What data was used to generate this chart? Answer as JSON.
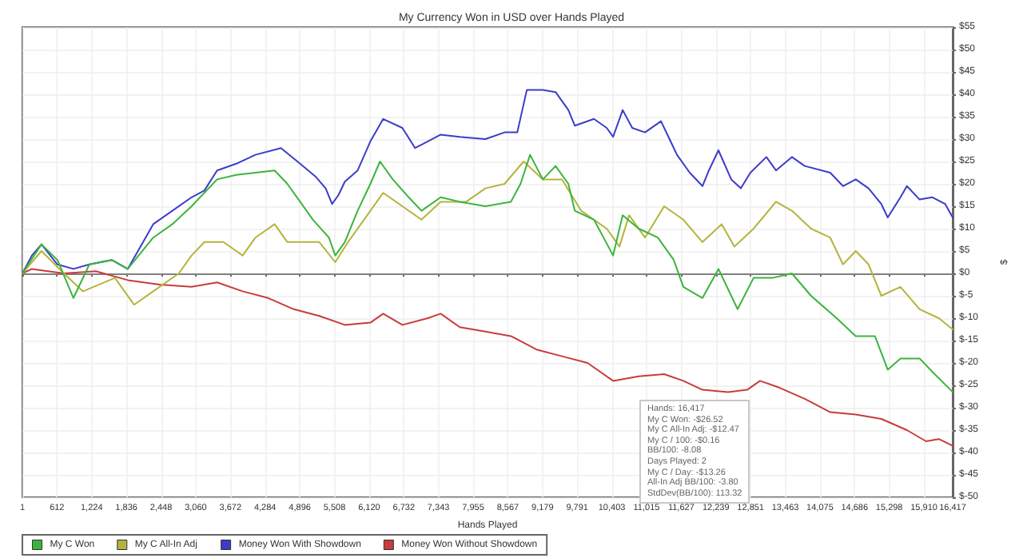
{
  "chart_data": {
    "type": "line",
    "title": "My Currency Won in USD over Hands Played",
    "xlabel": "Hands Played",
    "ylabel": "$",
    "annotations": [
      "Hands: 16,417",
      "My C Won: -$26.52",
      "My C All-In Adj: -$12.47",
      "My C / 100: -$0.16",
      "BB/100: -8.08",
      "Days Played: 2",
      "My C / Day: -$13.26",
      "All-In Adj BB/100: -3.80",
      "StdDev(BB/100): 113.32"
    ],
    "xlim": [
      1,
      16417
    ],
    "xticks": [
      1,
      612,
      {
        "value": 1224,
        "label": "1,224"
      },
      {
        "value": 1836,
        "label": "1,836"
      },
      {
        "value": 2448,
        "label": "2,448"
      },
      {
        "value": 3060,
        "label": "3,060"
      },
      {
        "value": 3672,
        "label": "3,672"
      },
      {
        "value": 4284,
        "label": "4,284"
      },
      {
        "value": 4896,
        "label": "4,896"
      },
      {
        "value": 5508,
        "label": "5,508"
      },
      {
        "value": 6120,
        "label": "6,120"
      },
      {
        "value": 6732,
        "label": "6,732"
      },
      {
        "value": 7343,
        "label": "7,343"
      },
      {
        "value": 7955,
        "label": "7,955"
      },
      {
        "value": 8567,
        "label": "8,567"
      },
      {
        "value": 9179,
        "label": "9,179"
      },
      {
        "value": 9791,
        "label": "9,791"
      },
      {
        "value": 10403,
        "label": "10,403"
      },
      {
        "value": 11015,
        "label": "11,015"
      },
      {
        "value": 11627,
        "label": "11,627"
      },
      {
        "value": 12239,
        "label": "12,239"
      },
      {
        "value": 12851,
        "label": "12,851"
      },
      {
        "value": 13463,
        "label": "13,463"
      },
      {
        "value": 14075,
        "label": "14,075"
      },
      {
        "value": 14686,
        "label": "14,686"
      },
      {
        "value": 15298,
        "label": "15,298"
      },
      {
        "value": 15910,
        "label": "15,910"
      },
      {
        "value": 16417,
        "label": "16,417"
      }
    ],
    "ylim": [
      -50,
      55
    ],
    "yticks": [
      {
        "value": -50,
        "label": "$-50"
      },
      {
        "value": -45,
        "label": "$-45"
      },
      {
        "value": -40,
        "label": "$-40"
      },
      {
        "value": -35,
        "label": "$-35"
      },
      {
        "value": -30,
        "label": "$-30"
      },
      {
        "value": -25,
        "label": "$-25"
      },
      {
        "value": -20,
        "label": "$-20"
      },
      {
        "value": -15,
        "label": "$-15"
      },
      {
        "value": -10,
        "label": "$-10"
      },
      {
        "value": -5,
        "label": "$-5"
      },
      {
        "value": 0,
        "label": "$0"
      },
      {
        "value": 5,
        "label": "$5"
      },
      {
        "value": 10,
        "label": "$10"
      },
      {
        "value": 15,
        "label": "$15"
      },
      {
        "value": 20,
        "label": "$20"
      },
      {
        "value": 25,
        "label": "$25"
      },
      {
        "value": 30,
        "label": "$30"
      },
      {
        "value": 35,
        "label": "$35"
      },
      {
        "value": 40,
        "label": "$40"
      },
      {
        "value": 45,
        "label": "$45"
      },
      {
        "value": 50,
        "label": "$50"
      },
      {
        "value": 55,
        "label": "$55"
      }
    ],
    "grid": true,
    "legend": "bottom left",
    "marker": "none",
    "line_style": "solid",
    "ref_lines": [
      {
        "axis": "y",
        "value": 0,
        "color": "#808080"
      }
    ],
    "series": [
      {
        "name": "My C Won",
        "color": "#3cb43c",
        "x": [
          1,
          338,
          620,
          902,
          1183,
          1578,
          1860,
          2310,
          2648,
          2987,
          3212,
          3437,
          3775,
          4114,
          4452,
          4677,
          4902,
          5128,
          5410,
          5522,
          5691,
          5917,
          6142,
          6311,
          6537,
          6818,
          7044,
          7382,
          7720,
          8171,
          8622,
          8791,
          8960,
          9185,
          9410,
          9636,
          9749,
          10087,
          10425,
          10594,
          10876,
          11214,
          11495,
          11664,
          12002,
          12284,
          12622,
          12904,
          13242,
          13580,
          13918,
          14369,
          14707,
          15045,
          15271,
          15496,
          15834,
          16060,
          16417
        ],
        "values": [
          0,
          6.5,
          3,
          -5.5,
          2,
          3,
          1,
          8,
          11,
          15,
          18,
          21,
          22,
          22.5,
          23,
          20,
          16,
          12,
          8,
          4,
          7,
          14,
          20,
          25,
          21,
          17,
          14,
          17,
          16,
          15,
          16,
          20,
          26.5,
          21,
          24,
          20,
          14,
          12,
          4,
          13,
          10,
          8,
          3,
          -3,
          -5.5,
          1,
          -8,
          -1,
          -1,
          0,
          -5,
          -10,
          -14,
          -14,
          -21.5,
          -19,
          -19,
          -22,
          -26.5
        ]
      },
      {
        "name": "My C All-In Adj",
        "color": "#b4b43c",
        "x": [
          1,
          338,
          733,
          1071,
          1634,
          1972,
          2310,
          2761,
          2987,
          3212,
          3550,
          3888,
          4114,
          4452,
          4677,
          4902,
          5241,
          5522,
          5748,
          6029,
          6368,
          6706,
          7044,
          7382,
          7833,
          8171,
          8509,
          8847,
          9185,
          9523,
          9861,
          10312,
          10537,
          10707,
          10988,
          11326,
          11664,
          12002,
          12341,
          12566,
          12904,
          13299,
          13580,
          13918,
          14256,
          14482,
          14707,
          14933,
          15158,
          15496,
          15834,
          16172,
          16417
        ],
        "values": [
          0,
          5,
          0,
          -4,
          -1,
          -7,
          -4,
          0,
          4,
          7,
          7,
          4,
          8,
          11,
          7,
          7,
          7,
          2.5,
          7,
          12,
          18,
          15,
          12,
          16,
          16,
          19,
          20,
          25,
          21,
          21,
          14,
          10,
          6,
          13,
          8,
          15,
          12,
          7,
          11,
          6,
          10,
          16,
          14,
          10,
          8,
          2,
          5,
          2,
          -5,
          -3,
          -8,
          -10,
          -12.5
        ]
      },
      {
        "name": "Money Won With Showdown",
        "color": "#3c3cc8",
        "x": [
          1,
          169,
          338,
          620,
          902,
          1183,
          1578,
          1860,
          2310,
          2987,
          3212,
          3437,
          3775,
          4114,
          4564,
          4902,
          5184,
          5353,
          5466,
          5579,
          5691,
          5917,
          6142,
          6368,
          6706,
          6931,
          7156,
          7382,
          7720,
          8171,
          8509,
          8734,
          8903,
          9185,
          9410,
          9636,
          9749,
          10087,
          10312,
          10425,
          10594,
          10763,
          10988,
          11270,
          11439,
          11552,
          11777,
          12002,
          12115,
          12284,
          12510,
          12679,
          12848,
          13130,
          13299,
          13580,
          13806,
          14256,
          14482,
          14707,
          14933,
          15158,
          15271,
          15496,
          15609,
          15834,
          16060,
          16285,
          16417
        ],
        "values": [
          0,
          4,
          6.5,
          2,
          1,
          2,
          3,
          1,
          11,
          17,
          18.5,
          23,
          24.5,
          26.5,
          28,
          24.5,
          21.5,
          19,
          15.5,
          17.5,
          20.5,
          23,
          29.5,
          34.5,
          32.5,
          28,
          29.5,
          31,
          30.5,
          30,
          31.5,
          31.5,
          41,
          41,
          40.5,
          36.5,
          33,
          34.5,
          32.5,
          30.5,
          36.5,
          32.5,
          31.5,
          34,
          29.5,
          26.5,
          22.5,
          19.5,
          23,
          27.5,
          21,
          19,
          22.5,
          26,
          23,
          26,
          24,
          22.5,
          19.5,
          21,
          19,
          15.5,
          12.5,
          17,
          19.5,
          16.5,
          17,
          15.5,
          12.5
        ]
      },
      {
        "name": "Money Won Without Showdown",
        "color": "#c83c3c",
        "x": [
          1,
          169,
          733,
          1296,
          1860,
          2423,
          2987,
          3437,
          3888,
          4339,
          4790,
          5241,
          5691,
          6142,
          6368,
          6706,
          7156,
          7382,
          7720,
          8171,
          8622,
          9072,
          9523,
          9974,
          10425,
          10876,
          11326,
          11664,
          12002,
          12453,
          12791,
          13017,
          13355,
          13806,
          14256,
          14707,
          15158,
          15609,
          15947,
          16172,
          16417
        ],
        "values": [
          0,
          1,
          0,
          0.5,
          -1.5,
          -2.5,
          -3,
          -2,
          -4,
          -5.5,
          -8,
          -9.5,
          -11.5,
          -11,
          -9,
          -11.5,
          -10,
          -9,
          -12,
          -13,
          -14,
          -17,
          -18.5,
          -20,
          -24,
          -23,
          -22.5,
          -24,
          -26,
          -26.5,
          -26,
          -24,
          -25.5,
          -28,
          -31,
          -31.5,
          -32.5,
          -35,
          -37.5,
          -37,
          -38.5
        ]
      }
    ]
  }
}
